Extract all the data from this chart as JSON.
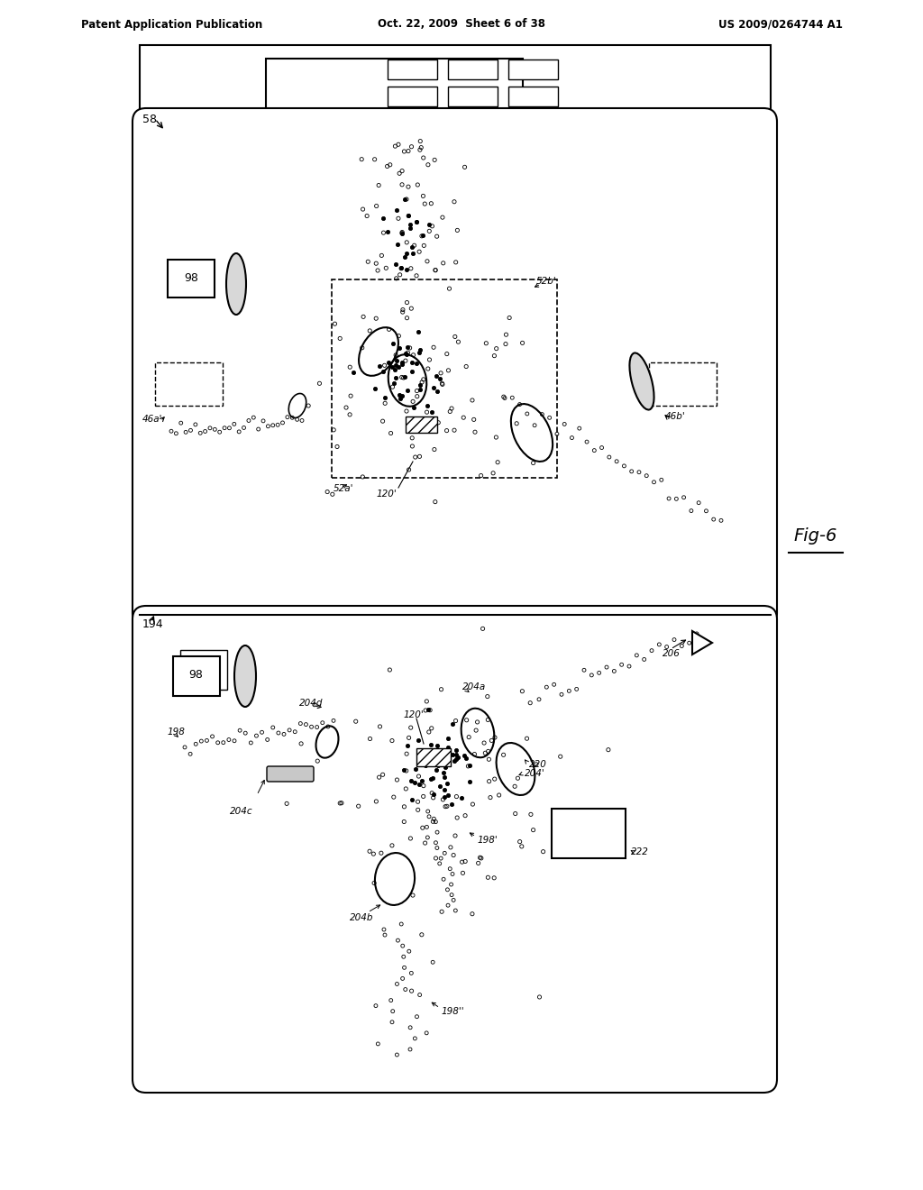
{
  "title_left": "Patent Application Publication",
  "title_center": "Oct. 22, 2009  Sheet 6 of 38",
  "title_right": "US 2009/0264744 A1",
  "fig_label": "Fig-6",
  "bg_color": "#ffffff"
}
